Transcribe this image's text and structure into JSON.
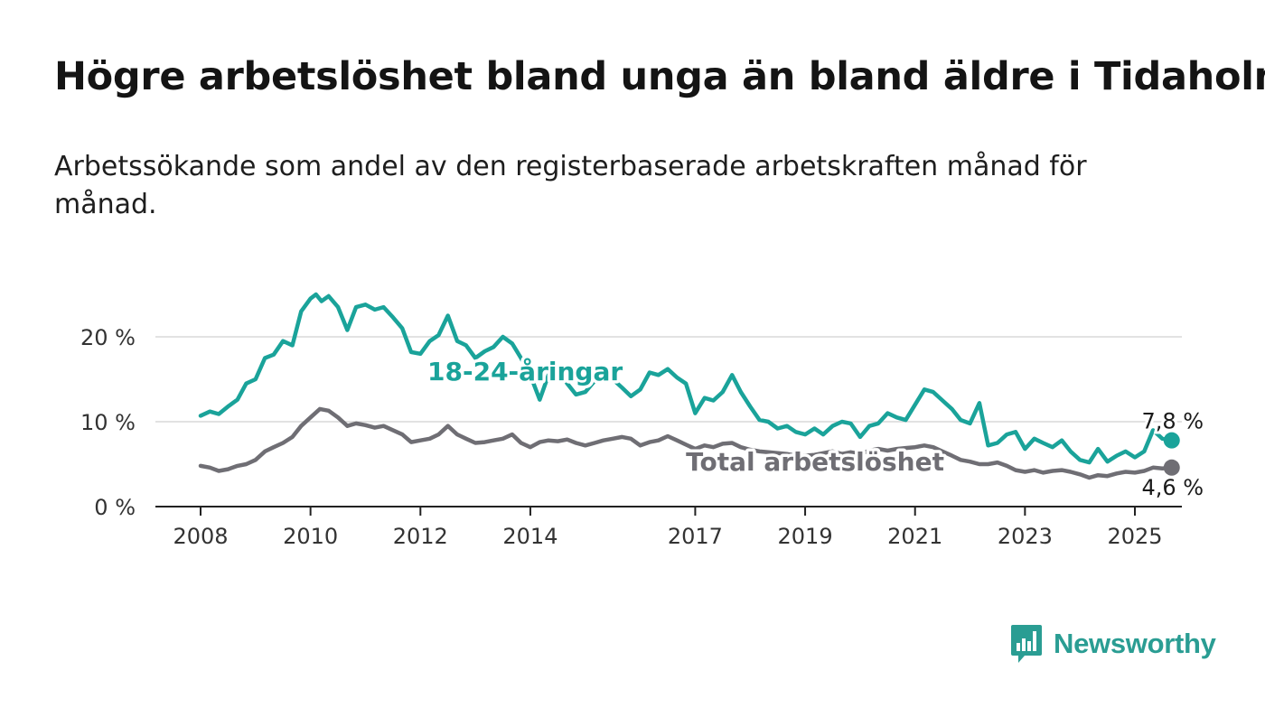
{
  "title": "Högre arbetslöshet bland unga än bland äldre i Tidaholm",
  "subtitle": "Arbetssökande som andel av den registerbaserade arbetskraften månad för månad.",
  "brand": {
    "name": "Newsworthy",
    "icon": "newsworthy-logo-icon",
    "color": "#2a9d93"
  },
  "chart_data": {
    "type": "line",
    "title": "Högre arbetslöshet bland unga än bland äldre i Tidaholm",
    "subtitle": "Arbetssökande som andel av den registerbaserade arbetskraften månad för månad.",
    "xlabel": "",
    "ylabel": "",
    "x_range": [
      2008.0,
      2025.0
    ],
    "ylim": [
      0,
      25
    ],
    "x_ticks": [
      2008,
      2010,
      2012,
      2014,
      2017,
      2019,
      2021,
      2023,
      2025
    ],
    "x_tick_labels": [
      "2008",
      "2010",
      "2012",
      "2014",
      "2017",
      "2019",
      "2021",
      "2023",
      "2025"
    ],
    "y_ticks": [
      0,
      10,
      20
    ],
    "y_tick_labels": [
      "0 %",
      "10 %",
      "20 %"
    ],
    "grid": "horizontal",
    "series": [
      {
        "name": "18-24-åringar",
        "color": "#1aa39a",
        "last_label": "7,8 %",
        "points": [
          [
            2008.0,
            10.7
          ],
          [
            2008.17,
            11.2
          ],
          [
            2008.33,
            10.9
          ],
          [
            2008.5,
            11.8
          ],
          [
            2008.67,
            12.6
          ],
          [
            2008.83,
            14.5
          ],
          [
            2009.0,
            15.0
          ],
          [
            2009.17,
            17.5
          ],
          [
            2009.33,
            17.9
          ],
          [
            2009.5,
            19.5
          ],
          [
            2009.67,
            19.0
          ],
          [
            2009.83,
            23.0
          ],
          [
            2010.0,
            24.5
          ],
          [
            2010.1,
            25.0
          ],
          [
            2010.2,
            24.2
          ],
          [
            2010.33,
            24.8
          ],
          [
            2010.5,
            23.5
          ],
          [
            2010.67,
            20.8
          ],
          [
            2010.83,
            23.5
          ],
          [
            2011.0,
            23.8
          ],
          [
            2011.17,
            23.2
          ],
          [
            2011.33,
            23.5
          ],
          [
            2011.5,
            22.3
          ],
          [
            2011.67,
            21.0
          ],
          [
            2011.83,
            18.2
          ],
          [
            2012.0,
            18.0
          ],
          [
            2012.17,
            19.5
          ],
          [
            2012.33,
            20.2
          ],
          [
            2012.5,
            22.5
          ],
          [
            2012.67,
            19.5
          ],
          [
            2012.83,
            19.0
          ],
          [
            2013.0,
            17.5
          ],
          [
            2013.17,
            18.3
          ],
          [
            2013.33,
            18.8
          ],
          [
            2013.5,
            20.0
          ],
          [
            2013.67,
            19.2
          ],
          [
            2013.83,
            17.5
          ],
          [
            2014.0,
            15.5
          ],
          [
            2014.17,
            12.6
          ],
          [
            2014.33,
            15.5
          ],
          [
            2014.5,
            16.0
          ],
          [
            2014.67,
            14.5
          ],
          [
            2014.83,
            13.2
          ],
          [
            2015.0,
            13.5
          ],
          [
            2015.17,
            14.8
          ],
          [
            2015.33,
            15.5
          ],
          [
            2015.5,
            15.0
          ],
          [
            2015.67,
            14.0
          ],
          [
            2015.83,
            13.0
          ],
          [
            2016.0,
            13.8
          ],
          [
            2016.17,
            15.8
          ],
          [
            2016.33,
            15.5
          ],
          [
            2016.5,
            16.2
          ],
          [
            2016.67,
            15.2
          ],
          [
            2016.83,
            14.5
          ],
          [
            2017.0,
            11.0
          ],
          [
            2017.17,
            12.8
          ],
          [
            2017.33,
            12.5
          ],
          [
            2017.5,
            13.5
          ],
          [
            2017.67,
            15.5
          ],
          [
            2017.83,
            13.5
          ],
          [
            2018.0,
            11.8
          ],
          [
            2018.17,
            10.2
          ],
          [
            2018.33,
            10.0
          ],
          [
            2018.5,
            9.2
          ],
          [
            2018.67,
            9.5
          ],
          [
            2018.83,
            8.8
          ],
          [
            2019.0,
            8.5
          ],
          [
            2019.17,
            9.2
          ],
          [
            2019.33,
            8.5
          ],
          [
            2019.5,
            9.5
          ],
          [
            2019.67,
            10.0
          ],
          [
            2019.83,
            9.8
          ],
          [
            2020.0,
            8.2
          ],
          [
            2020.17,
            9.5
          ],
          [
            2020.33,
            9.8
          ],
          [
            2020.5,
            11.0
          ],
          [
            2020.67,
            10.5
          ],
          [
            2020.83,
            10.2
          ],
          [
            2021.0,
            12.0
          ],
          [
            2021.17,
            13.8
          ],
          [
            2021.33,
            13.5
          ],
          [
            2021.5,
            12.5
          ],
          [
            2021.67,
            11.5
          ],
          [
            2021.83,
            10.2
          ],
          [
            2022.0,
            9.8
          ],
          [
            2022.17,
            12.2
          ],
          [
            2022.33,
            7.2
          ],
          [
            2022.5,
            7.5
          ],
          [
            2022.67,
            8.5
          ],
          [
            2022.83,
            8.8
          ],
          [
            2023.0,
            6.8
          ],
          [
            2023.17,
            8.0
          ],
          [
            2023.33,
            7.5
          ],
          [
            2023.5,
            7.0
          ],
          [
            2023.67,
            7.8
          ],
          [
            2023.83,
            6.5
          ],
          [
            2024.0,
            5.5
          ],
          [
            2024.17,
            5.2
          ],
          [
            2024.33,
            6.8
          ],
          [
            2024.5,
            5.3
          ],
          [
            2024.67,
            6.0
          ],
          [
            2024.83,
            6.5
          ],
          [
            2025.0,
            5.8
          ],
          [
            2025.17,
            6.5
          ],
          [
            2025.33,
            9.0
          ],
          [
            2025.5,
            8.0
          ],
          [
            2025.67,
            7.8
          ]
        ]
      },
      {
        "name": "Total arbetslöshet",
        "color": "#6f6e74",
        "last_label": "4,6 %",
        "points": [
          [
            2008.0,
            4.8
          ],
          [
            2008.17,
            4.6
          ],
          [
            2008.33,
            4.2
          ],
          [
            2008.5,
            4.4
          ],
          [
            2008.67,
            4.8
          ],
          [
            2008.83,
            5.0
          ],
          [
            2009.0,
            5.5
          ],
          [
            2009.17,
            6.5
          ],
          [
            2009.33,
            7.0
          ],
          [
            2009.5,
            7.5
          ],
          [
            2009.67,
            8.2
          ],
          [
            2009.83,
            9.5
          ],
          [
            2010.0,
            10.5
          ],
          [
            2010.17,
            11.5
          ],
          [
            2010.33,
            11.3
          ],
          [
            2010.5,
            10.5
          ],
          [
            2010.67,
            9.5
          ],
          [
            2010.83,
            9.8
          ],
          [
            2011.0,
            9.6
          ],
          [
            2011.17,
            9.3
          ],
          [
            2011.33,
            9.5
          ],
          [
            2011.5,
            9.0
          ],
          [
            2011.67,
            8.5
          ],
          [
            2011.83,
            7.6
          ],
          [
            2012.0,
            7.8
          ],
          [
            2012.17,
            8.0
          ],
          [
            2012.33,
            8.5
          ],
          [
            2012.5,
            9.5
          ],
          [
            2012.67,
            8.5
          ],
          [
            2012.83,
            8.0
          ],
          [
            2013.0,
            7.5
          ],
          [
            2013.17,
            7.6
          ],
          [
            2013.33,
            7.8
          ],
          [
            2013.5,
            8.0
          ],
          [
            2013.67,
            8.5
          ],
          [
            2013.83,
            7.5
          ],
          [
            2014.0,
            7.0
          ],
          [
            2014.17,
            7.6
          ],
          [
            2014.33,
            7.8
          ],
          [
            2014.5,
            7.7
          ],
          [
            2014.67,
            7.9
          ],
          [
            2014.83,
            7.5
          ],
          [
            2015.0,
            7.2
          ],
          [
            2015.17,
            7.5
          ],
          [
            2015.33,
            7.8
          ],
          [
            2015.5,
            8.0
          ],
          [
            2015.67,
            8.2
          ],
          [
            2015.83,
            8.0
          ],
          [
            2016.0,
            7.2
          ],
          [
            2016.17,
            7.6
          ],
          [
            2016.33,
            7.8
          ],
          [
            2016.5,
            8.3
          ],
          [
            2016.67,
            7.8
          ],
          [
            2016.83,
            7.3
          ],
          [
            2017.0,
            6.8
          ],
          [
            2017.17,
            7.2
          ],
          [
            2017.33,
            7.0
          ],
          [
            2017.5,
            7.4
          ],
          [
            2017.67,
            7.5
          ],
          [
            2017.83,
            7.0
          ],
          [
            2018.0,
            6.7
          ],
          [
            2018.17,
            6.5
          ],
          [
            2018.33,
            6.4
          ],
          [
            2018.5,
            6.3
          ],
          [
            2018.67,
            6.2
          ],
          [
            2018.83,
            6.0
          ],
          [
            2019.0,
            6.0
          ],
          [
            2019.17,
            6.1
          ],
          [
            2019.33,
            6.3
          ],
          [
            2019.5,
            6.5
          ],
          [
            2019.67,
            6.2
          ],
          [
            2019.83,
            6.4
          ],
          [
            2020.0,
            6.2
          ],
          [
            2020.17,
            6.6
          ],
          [
            2020.33,
            6.8
          ],
          [
            2020.5,
            6.6
          ],
          [
            2020.67,
            6.8
          ],
          [
            2020.83,
            6.9
          ],
          [
            2021.0,
            7.0
          ],
          [
            2021.17,
            7.2
          ],
          [
            2021.33,
            7.0
          ],
          [
            2021.5,
            6.5
          ],
          [
            2021.67,
            6.0
          ],
          [
            2021.83,
            5.5
          ],
          [
            2022.0,
            5.3
          ],
          [
            2022.17,
            5.0
          ],
          [
            2022.33,
            5.0
          ],
          [
            2022.5,
            5.2
          ],
          [
            2022.67,
            4.8
          ],
          [
            2022.83,
            4.3
          ],
          [
            2023.0,
            4.1
          ],
          [
            2023.17,
            4.3
          ],
          [
            2023.33,
            4.0
          ],
          [
            2023.5,
            4.2
          ],
          [
            2023.67,
            4.3
          ],
          [
            2023.83,
            4.1
          ],
          [
            2024.0,
            3.8
          ],
          [
            2024.17,
            3.4
          ],
          [
            2024.33,
            3.7
          ],
          [
            2024.5,
            3.6
          ],
          [
            2024.67,
            3.9
          ],
          [
            2024.83,
            4.1
          ],
          [
            2025.0,
            4.0
          ],
          [
            2025.17,
            4.2
          ],
          [
            2025.33,
            4.6
          ],
          [
            2025.5,
            4.5
          ],
          [
            2025.67,
            4.6
          ]
        ]
      }
    ]
  }
}
